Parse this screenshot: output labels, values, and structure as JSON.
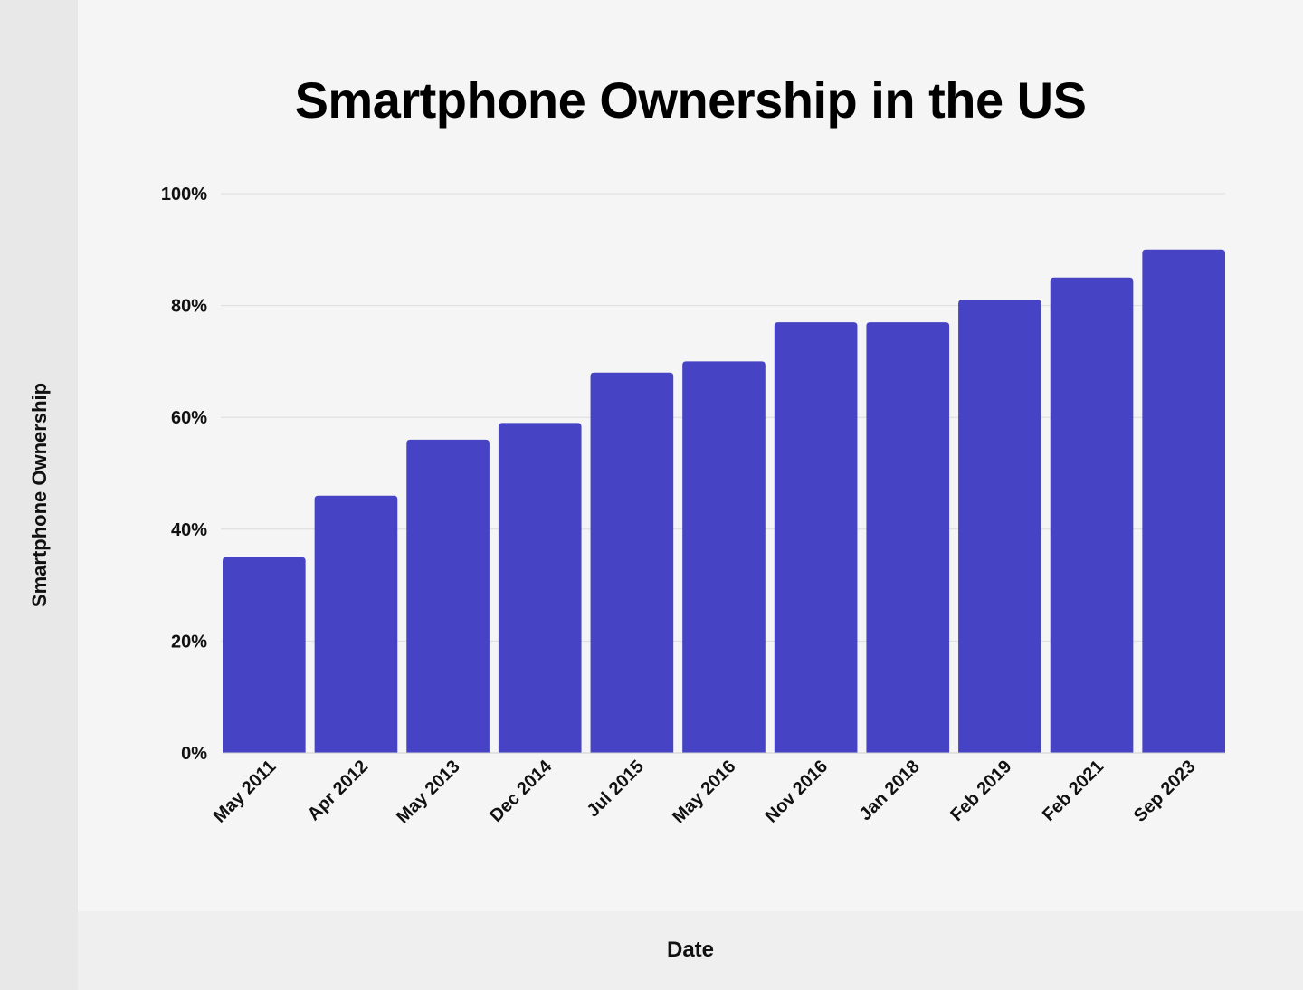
{
  "chart_data": {
    "type": "bar",
    "title": "Smartphone Ownership in the US",
    "xlabel": "Date",
    "ylabel": "Smartphone Ownership",
    "categories": [
      "May 2011",
      "Apr 2012",
      "May 2013",
      "Dec 2014",
      "Jul 2015",
      "May 2016",
      "Nov 2016",
      "Jan 2018",
      "Feb 2019",
      "Feb 2021",
      "Sep 2023"
    ],
    "values": [
      35,
      46,
      56,
      59,
      68,
      70,
      77,
      77,
      81,
      85,
      90
    ],
    "ylim": [
      0,
      100
    ],
    "yticks": [
      0,
      20,
      40,
      60,
      80,
      100
    ],
    "ytick_labels": [
      "0%",
      "20%",
      "40%",
      "60%",
      "80%",
      "100%"
    ],
    "grid": true,
    "bar_color": "#4643c4"
  }
}
